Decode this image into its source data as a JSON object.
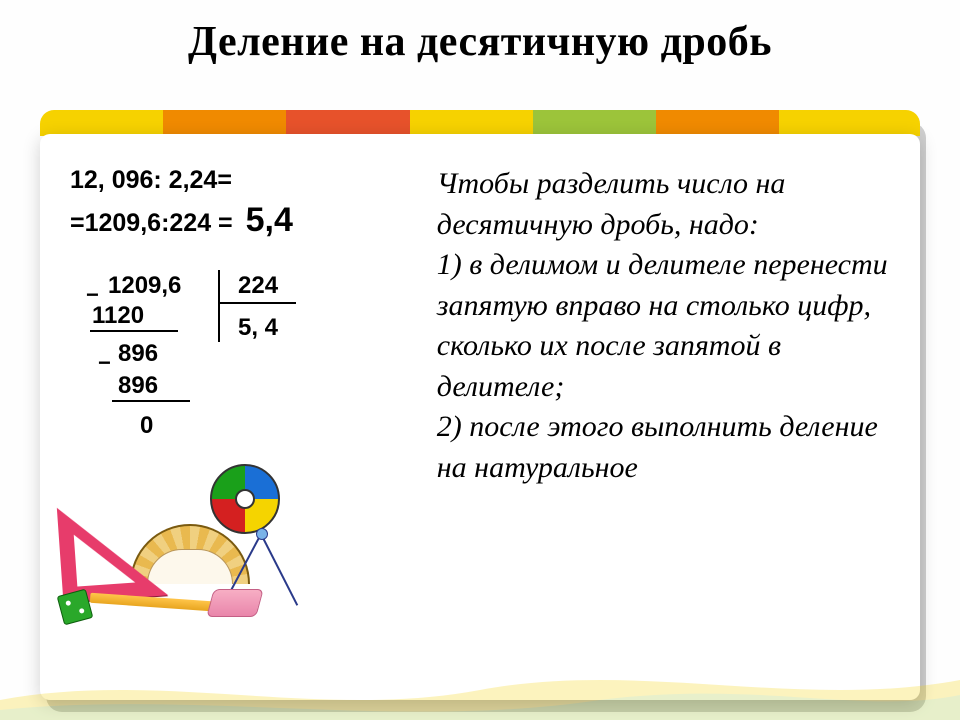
{
  "title": "Деление на десятичную дробь",
  "equation": {
    "line1": "12, 096: 2,24=",
    "line2_prefix": "=1209,6:224 =",
    "answer": "5,4"
  },
  "longdiv": {
    "dividend": "1209,6",
    "divisor": "224",
    "quotient": "5, 4",
    "sub1": "1120",
    "rem1": "896",
    "rem2": "896",
    "zero": "0"
  },
  "rule": {
    "intro": "Чтобы разделить число на десятичную дробь, надо:",
    "p1": "1) в делимом и делителе перенести запятую вправо на столько цифр, сколько их после запятой  в делителе;",
    "p2": "2) после этого выполнить деление на натуральное"
  },
  "stripe_colors": [
    "#f6d200",
    "#f08a00",
    "#e7522b",
    "#f6d200",
    "#9cc43a",
    "#f08a00",
    "#f6d200",
    "#9cc43a"
  ],
  "stripe_stops": [
    0,
    14,
    28,
    42,
    56,
    70,
    84,
    100
  ],
  "line_color": "#000000",
  "title_fontsize": 42,
  "rule_fontsize": 30,
  "eq_fontsize": 25,
  "answer_fontsize": 34,
  "longdiv_fontsize": 24
}
